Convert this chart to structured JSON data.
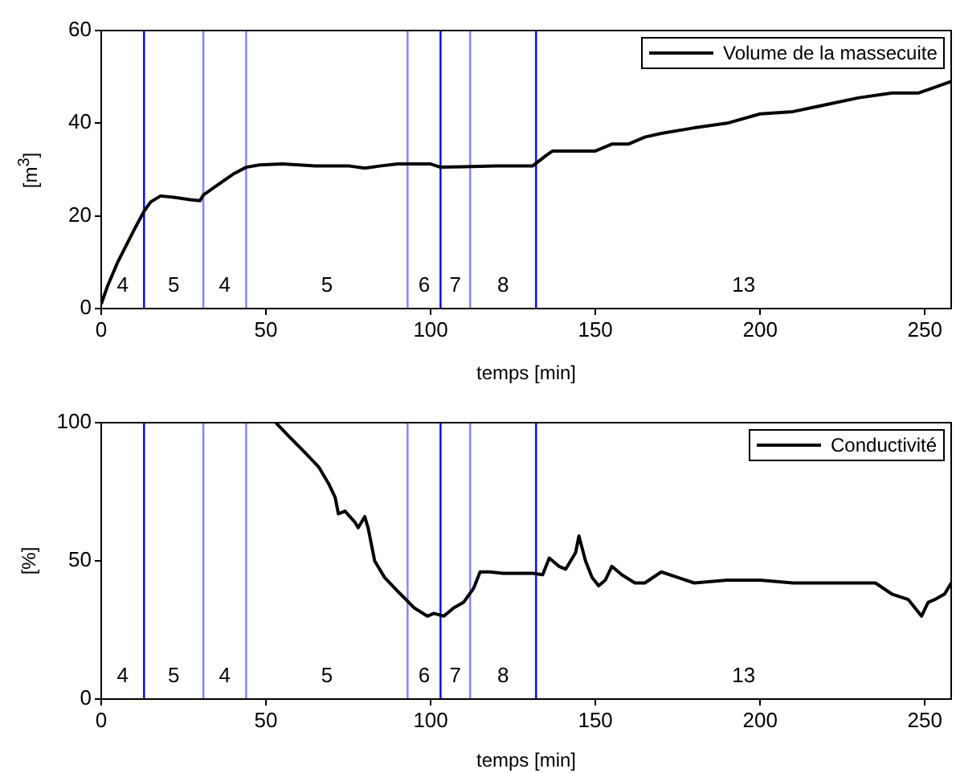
{
  "chart_data": [
    {
      "type": "line",
      "xlabel": "temps [min]",
      "ylabel": "[m$^{3}$]",
      "legend": "top right",
      "grid": false,
      "xlim": [
        0,
        258
      ],
      "xticks": [
        0,
        50,
        100,
        150,
        200,
        250
      ],
      "ylim": [
        0,
        60
      ],
      "yticks": [
        0,
        20,
        40,
        60
      ],
      "series": [
        {
          "name": "Volume de la massecuite",
          "color": "#000000",
          "x": [
            0,
            2,
            5,
            10,
            13,
            15,
            18,
            22,
            27,
            30,
            31,
            35,
            40,
            44,
            48,
            55,
            65,
            75,
            80,
            85,
            90,
            100,
            103,
            110,
            120,
            131,
            135,
            137,
            145,
            150,
            155,
            160,
            165,
            170,
            180,
            190,
            200,
            210,
            220,
            230,
            240,
            248,
            252,
            258
          ],
          "values": [
            1,
            5,
            10,
            17,
            21,
            23,
            24.3,
            24,
            23.5,
            23.3,
            24.5,
            26.5,
            29,
            30.5,
            31,
            31.2,
            30.8,
            30.8,
            30.3,
            30.8,
            31.2,
            31.2,
            30.5,
            30.6,
            30.8,
            30.8,
            33,
            34,
            34,
            34,
            35.5,
            35.5,
            37,
            37.8,
            39,
            40,
            42,
            42.5,
            44,
            45.5,
            46.5,
            46.5,
            47.5,
            49
          ]
        }
      ],
      "ref_lines": [
        {
          "axis": "x",
          "value": 13,
          "color": "#0000ff"
        },
        {
          "axis": "x",
          "value": 31,
          "color": "#8080ff"
        },
        {
          "axis": "x",
          "value": 44,
          "color": "#8080ff"
        },
        {
          "axis": "x",
          "value": 93,
          "color": "#8080ff"
        },
        {
          "axis": "x",
          "value": 103,
          "color": "#0000ff"
        },
        {
          "axis": "x",
          "value": 112,
          "color": "#8080ff"
        },
        {
          "axis": "x",
          "value": 132,
          "color": "#0000ff"
        }
      ],
      "annotations": [
        "4",
        "5",
        "4",
        "5",
        "6",
        "7",
        "8",
        "13"
      ]
    },
    {
      "type": "line",
      "xlabel": "temps [min]",
      "ylabel": "[%]",
      "legend": "top right",
      "grid": false,
      "xlim": [
        0,
        258
      ],
      "xticks": [
        0,
        50,
        100,
        150,
        200,
        250
      ],
      "ylim": [
        0,
        100
      ],
      "yticks": [
        0,
        50,
        100
      ],
      "series": [
        {
          "name": "Conductivité",
          "color": "#000000",
          "x": [
            53,
            57,
            62,
            66,
            69,
            71,
            72,
            74,
            77,
            78,
            80,
            81,
            83,
            86,
            90,
            95,
            99,
            101,
            104,
            107,
            110,
            113,
            115,
            118,
            122,
            127,
            131,
            134,
            136,
            139,
            141,
            144,
            145,
            147,
            149,
            151,
            153,
            155,
            158,
            162,
            165,
            170,
            175,
            180,
            190,
            200,
            210,
            220,
            230,
            235,
            240,
            245,
            249,
            251,
            253,
            256,
            258
          ],
          "values": [
            100,
            95,
            89,
            84,
            78,
            73,
            67,
            68,
            64,
            62,
            66,
            62,
            50,
            44,
            39,
            33,
            30,
            31,
            30,
            33,
            35,
            40,
            46,
            46,
            45.5,
            45.5,
            45.5,
            45,
            51,
            48,
            47,
            53,
            59,
            50,
            44,
            41,
            43,
            48,
            45,
            42,
            42,
            46,
            44,
            42,
            43,
            43,
            42,
            42,
            42,
            42,
            38,
            36,
            30,
            35,
            36,
            38,
            42
          ]
        }
      ],
      "ref_lines": [
        {
          "axis": "x",
          "value": 13,
          "color": "#0000ff"
        },
        {
          "axis": "x",
          "value": 31,
          "color": "#8080ff"
        },
        {
          "axis": "x",
          "value": 44,
          "color": "#8080ff"
        },
        {
          "axis": "x",
          "value": 93,
          "color": "#8080ff"
        },
        {
          "axis": "x",
          "value": 103,
          "color": "#0000ff"
        },
        {
          "axis": "x",
          "value": 112,
          "color": "#8080ff"
        },
        {
          "axis": "x",
          "value": 132,
          "color": "#0000ff"
        }
      ],
      "annotations": [
        "4",
        "5",
        "4",
        "5",
        "6",
        "7",
        "8",
        "13"
      ]
    }
  ]
}
